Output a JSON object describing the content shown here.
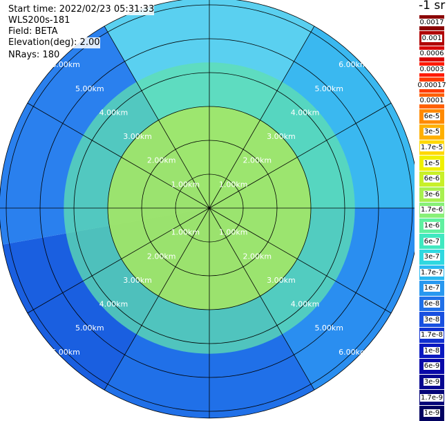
{
  "header": {
    "start_time": "Start time: 2022/02/23 05:31:33",
    "instrument": "WLS200s-181",
    "field": "Field: BETA",
    "elevation": "Elevation(deg): 2.00",
    "nrays": "NRays: 180"
  },
  "colorbar": {
    "units": "-1 sr",
    "labels": [
      "0.0017",
      "0.001",
      "0.0006",
      "0.0003",
      "0.00017",
      "0.0001",
      "6e-5",
      "3e-5",
      "1.7e-5",
      "1e-5",
      "6e-6",
      "3e-6",
      "1.7e-6",
      "1e-6",
      "6e-7",
      "3e-7",
      "1.7e-7",
      "1e-7",
      "6e-8",
      "3e-8",
      "1.7e-8",
      "1e-8",
      "6e-9",
      "3e-9",
      "1.7e-9",
      "1e-9"
    ],
    "colors": [
      "#8a0000",
      "#b00000",
      "#d80000",
      "#ff1a00",
      "#ff3c00",
      "#ff6000",
      "#ff8a00",
      "#ffb000",
      "#ffd800",
      "#f0f000",
      "#c8f028",
      "#a8f050",
      "#88f078",
      "#60f0a0",
      "#40e8c0",
      "#30d8e0",
      "#2ab8f0",
      "#2898f0",
      "#2070e8",
      "#1850e0",
      "#1030d0",
      "#0818c0",
      "#0808a8",
      "#060690",
      "#040478",
      "#020260"
    ]
  },
  "chart_data": {
    "type": "polar-ppi",
    "range_rings_km": [
      1.0,
      2.0,
      3.0,
      4.0,
      5.0,
      6.0
    ],
    "range_labels": [
      "1.00km",
      "2.00km",
      "3.00km",
      "4.00km",
      "5.00km",
      "6.00km"
    ],
    "max_range_km": 6.2,
    "spokes_deg": [
      0,
      30,
      60,
      90,
      120,
      150,
      180,
      210,
      240,
      270,
      300,
      330
    ],
    "sector_colors": [
      {
        "from_deg": 0,
        "to_deg": 30,
        "color": "#5ad0f0"
      },
      {
        "from_deg": 30,
        "to_deg": 90,
        "color": "#3ab8f0"
      },
      {
        "from_deg": 90,
        "to_deg": 150,
        "color": "#2a8ef0"
      },
      {
        "from_deg": 150,
        "to_deg": 210,
        "color": "#2070e8"
      },
      {
        "from_deg": 210,
        "to_deg": 260,
        "color": "#1a5fe0"
      },
      {
        "from_deg": 260,
        "to_deg": 330,
        "color": "#2a80ee"
      },
      {
        "from_deg": 330,
        "to_deg": 360,
        "color": "#5ad0f0"
      }
    ],
    "inner_field": {
      "range_km": 3.0,
      "color": "#a8e860"
    },
    "mid_field": {
      "range_km": 4.3,
      "color": "#60e0b0"
    }
  }
}
